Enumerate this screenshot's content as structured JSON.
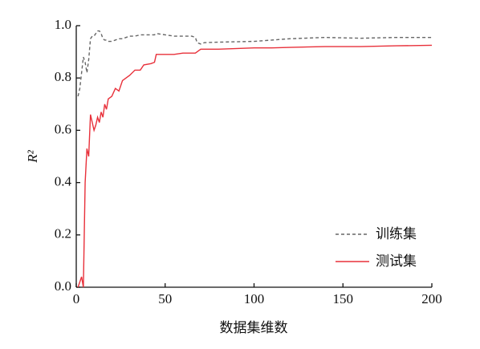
{
  "chart_data": {
    "type": "line",
    "x_label": "数据集维数",
    "y_label": "R²",
    "x": [
      1,
      2,
      3,
      4,
      5,
      6,
      7,
      8,
      9,
      10,
      11,
      12,
      13,
      14,
      15,
      16,
      17,
      18,
      20,
      22,
      24,
      26,
      28,
      30,
      33,
      36,
      38,
      42,
      44,
      45,
      50,
      55,
      60,
      65,
      67,
      68,
      70,
      72,
      80,
      100,
      110,
      120,
      140,
      160,
      180,
      200
    ],
    "series": [
      {
        "name": "训练集",
        "color": "#666666",
        "dash": true,
        "values": [
          0.73,
          0.76,
          0.82,
          0.88,
          0.86,
          0.82,
          0.87,
          0.95,
          0.96,
          0.96,
          0.97,
          0.98,
          0.98,
          0.97,
          0.95,
          0.945,
          0.945,
          0.94,
          0.94,
          0.945,
          0.95,
          0.95,
          0.955,
          0.96,
          0.96,
          0.965,
          0.965,
          0.965,
          0.965,
          0.97,
          0.965,
          0.96,
          0.96,
          0.96,
          0.955,
          0.935,
          0.93,
          0.935,
          0.937,
          0.94,
          0.945,
          0.95,
          0.955,
          0.952,
          0.955,
          0.955
        ]
      },
      {
        "name": "测试集",
        "color": "#e8303a",
        "dash": false,
        "values": [
          0,
          0.02,
          0.04,
          0,
          0.4,
          0.53,
          0.5,
          0.66,
          0.63,
          0.6,
          0.62,
          0.65,
          0.63,
          0.67,
          0.65,
          0.7,
          0.68,
          0.72,
          0.73,
          0.76,
          0.75,
          0.79,
          0.8,
          0.81,
          0.83,
          0.83,
          0.85,
          0.855,
          0.86,
          0.89,
          0.89,
          0.89,
          0.895,
          0.895,
          0.895,
          0.9,
          0.91,
          0.91,
          0.91,
          0.915,
          0.915,
          0.917,
          0.92,
          0.92,
          0.923,
          0.925
        ]
      }
    ],
    "xlim": [
      0,
      200
    ],
    "ylim": [
      0,
      1.0
    ],
    "xticks": [
      0,
      50,
      100,
      150,
      200
    ],
    "yticks": [
      {
        "value": 0,
        "label": "0.0"
      },
      0.2,
      0.4,
      0.6,
      0.8,
      {
        "value": 1.0,
        "label": "1.0"
      }
    ],
    "legend": "lower right"
  }
}
